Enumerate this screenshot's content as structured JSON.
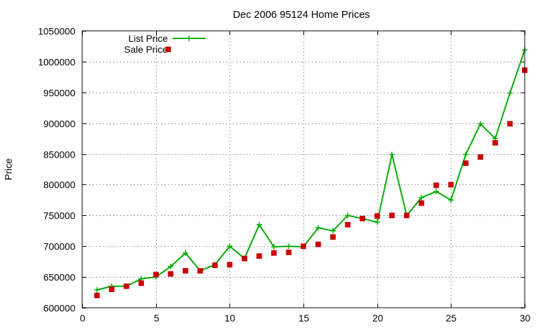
{
  "chart_data": {
    "type": "line",
    "title": "Dec 2006 95124 Home Prices",
    "xlabel": "",
    "ylabel": "Price",
    "xlim": [
      0,
      30
    ],
    "ylim": [
      600000,
      1050000
    ],
    "xticks": [
      0,
      5,
      10,
      15,
      20,
      25,
      30
    ],
    "yticks": [
      600000,
      650000,
      700000,
      750000,
      800000,
      850000,
      900000,
      950000,
      1000000,
      1050000
    ],
    "grid": true,
    "legend_position": "top-left",
    "series": [
      {
        "name": "List Price",
        "style": "line-with-plus-markers",
        "color": "#00aa00",
        "x": [
          1,
          2,
          3,
          4,
          5,
          6,
          7,
          8,
          9,
          10,
          11,
          12,
          13,
          14,
          15,
          16,
          17,
          18,
          19,
          20,
          21,
          22,
          23,
          24,
          25,
          26,
          27,
          28,
          29,
          30
        ],
        "values": [
          629000,
          635000,
          635000,
          647000,
          650000,
          667000,
          689000,
          660000,
          670000,
          700000,
          680000,
          735000,
          699000,
          700000,
          699000,
          730000,
          725000,
          750000,
          745000,
          739000,
          849000,
          750000,
          779000,
          789000,
          775000,
          849000,
          899000,
          875000,
          949000,
          1019000
        ]
      },
      {
        "name": "Sale Price",
        "style": "square-markers",
        "color": "#cc0000",
        "x": [
          1,
          2,
          3,
          4,
          5,
          6,
          7,
          8,
          9,
          10,
          11,
          12,
          13,
          14,
          15,
          16,
          17,
          18,
          19,
          20,
          21,
          22,
          23,
          24,
          25,
          26,
          27,
          28,
          29,
          30
        ],
        "values": [
          620000,
          630000,
          635000,
          640000,
          654000,
          655000,
          660000,
          660000,
          669000,
          670000,
          680000,
          684000,
          689000,
          690000,
          700000,
          703000,
          715000,
          735000,
          745000,
          749000,
          750000,
          750000,
          770000,
          799000,
          800000,
          835000,
          845000,
          868000,
          899000,
          986000
        ]
      }
    ]
  }
}
